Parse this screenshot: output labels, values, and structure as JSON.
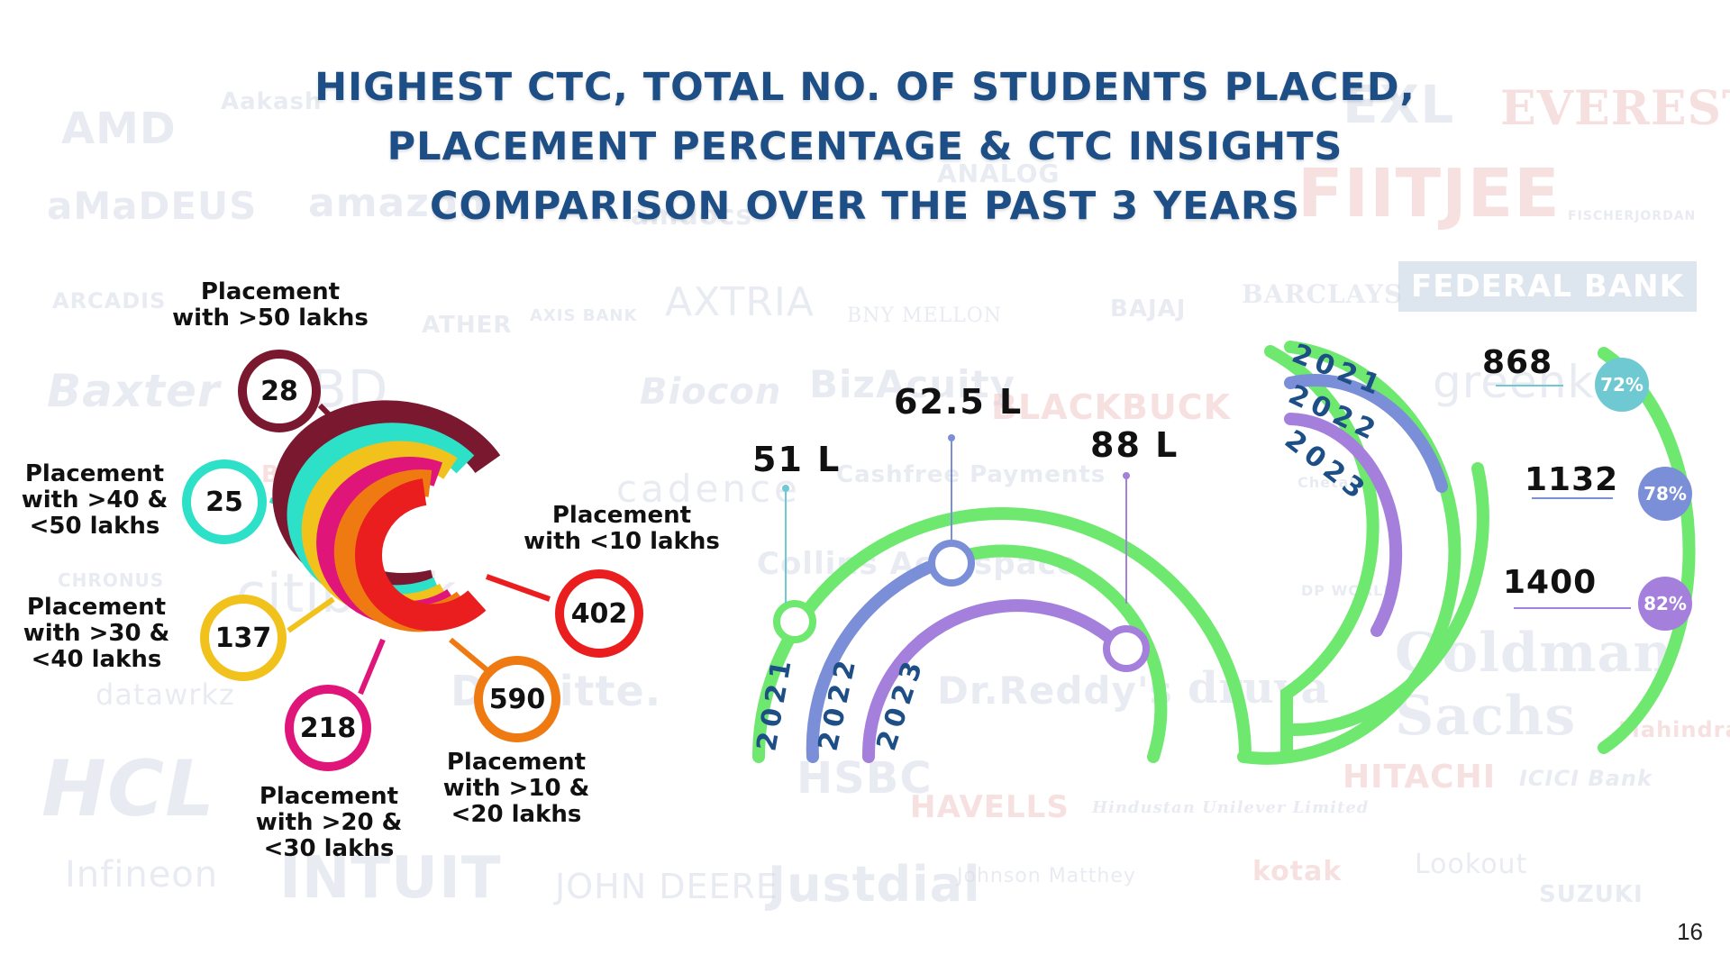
{
  "title": {
    "line1": "HIGHEST CTC, TOTAL NO. OF STUDENTS PLACED,",
    "line2": "PLACEMENT PERCENTAGE & CTC INSIGHTS",
    "line3": "COMPARISON OVER THE PAST 3 YEARS"
  },
  "colors": {
    "title": "#1d4e86",
    "green": "#6ee86e",
    "blue": "#7a8fd8",
    "purple": "#a47fdc",
    "teal": "#6fc9d3"
  },
  "background_logos": [
    "AMD",
    "Aakash",
    "EXL",
    "EVEREST",
    "aMaDEUS",
    "amazon",
    "amdocs",
    "ANALOG",
    "FIITJEE",
    "FISCHERJORDAN",
    "ARCADIS",
    "ATHER",
    "AXIS BANK",
    "AXTRIA",
    "BNY MELLON",
    "BAJAJ",
    "BARCLAYS",
    "FEDERAL BANK",
    "Baxter",
    "BD",
    "Biocon",
    "BizAcuity",
    "BLACKBUCK",
    "greenk",
    "BOSCH",
    "cadence",
    "Cashfree Payments",
    "Chetak",
    "CHRONUS",
    "citibank",
    "Collins Aerospace",
    "DP WORLD",
    "Goldman Sachs",
    "datawrkz",
    "Deloitte.",
    "Dr.Reddy's",
    "druva",
    "HCL",
    "HSBC",
    "HAVELLS",
    "Hindustan Unilever Limited",
    "HITACHI",
    "ICICI Bank",
    "Mahindra",
    "Infineon",
    "INTUIT",
    "JOHN DEERE",
    "Justdial",
    "Johnson Matthey",
    "kotak",
    "Lookout",
    "SUZUKI"
  ],
  "ctc_breakdown": [
    {
      "label_line1": "Placement",
      "label_line2": "with  >50 lakhs",
      "label_line3": "",
      "value": "28",
      "color": "#7a1830"
    },
    {
      "label_line1": "Placement",
      "label_line2": "with >40 &",
      "label_line3": "<50 lakhs",
      "value": "25",
      "color": "#2de0c8"
    },
    {
      "label_line1": "Placement",
      "label_line2": "with >30 &",
      "label_line3": "<40 lakhs",
      "value": "137",
      "color": "#f2c21c"
    },
    {
      "label_line1": "Placement",
      "label_line2": "with >20 &",
      "label_line3": "<30 lakhs",
      "value": "218",
      "color": "#e0157a"
    },
    {
      "label_line1": "Placement",
      "label_line2": "with >10 &",
      "label_line3": "<20 lakhs",
      "value": "590",
      "color": "#f07a12"
    },
    {
      "label_line1": "Placement",
      "label_line2": "with <10 lakhs",
      "label_line3": "",
      "value": "402",
      "color": "#ea1e1e"
    }
  ],
  "highest_ctc": [
    {
      "year": "2021",
      "value": "51  L",
      "color": "#6ee86e"
    },
    {
      "year": "2022",
      "value": "62.5 L",
      "color": "#7a8fd8"
    },
    {
      "year": "2023",
      "value": "88 L",
      "color": "#a47fdc"
    }
  ],
  "placements": [
    {
      "year": "2021",
      "count": "868",
      "percent": "72%",
      "color": "#6fc9d3"
    },
    {
      "year": "2022",
      "count": "1132",
      "percent": "78%",
      "color": "#7a8fd8"
    },
    {
      "year": "2023",
      "count": "1400",
      "percent": "82%",
      "color": "#a47fdc"
    }
  ],
  "page_number": "16"
}
